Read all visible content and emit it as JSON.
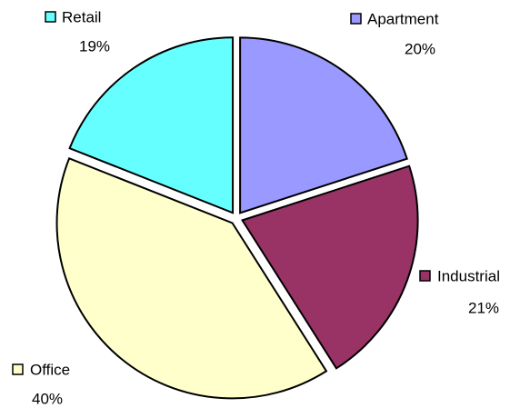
{
  "chart_data": {
    "type": "pie",
    "categories": [
      "Apartment",
      "Industrial",
      "Office",
      "Retail"
    ],
    "values": [
      20,
      21,
      40,
      19
    ],
    "value_labels": [
      "20%",
      "21%",
      "40%",
      "19%"
    ],
    "colors": [
      "#9999ff",
      "#993366",
      "#ffffcc",
      "#66ffff"
    ]
  }
}
